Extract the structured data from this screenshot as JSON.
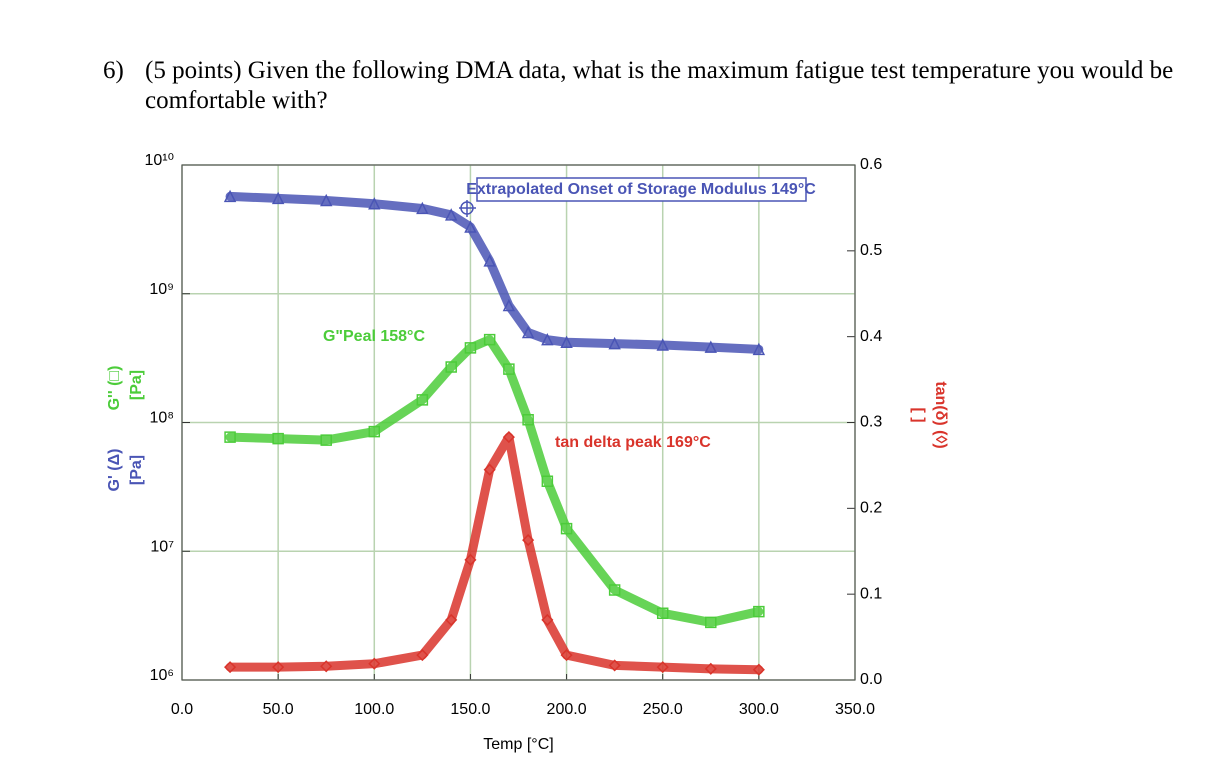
{
  "question": {
    "number": "6)",
    "text": "(5 points) Given the following DMA data, what is the maximum fatigue test temperature you would be comfortable with?"
  },
  "chart_data": {
    "type": "line",
    "xlabel": "Temp [°C]",
    "ylabel_parts": [
      {
        "text": "G' (Δ)",
        "color": "#4a55b5"
      },
      {
        "text": "[Pa]",
        "color": "#4a55b5"
      },
      {
        "text": "G'' (□)",
        "color": "#4ccc3a"
      },
      {
        "text": "[Pa]",
        "color": "#4ccc3a"
      }
    ],
    "y2label_parts": [
      {
        "text": "tan(δ) (◊)",
        "color": "#d9342b"
      },
      {
        "text": "[ ]",
        "color": "#d9342b"
      }
    ],
    "ylog": true,
    "grid": true,
    "xlim": [
      0,
      350
    ],
    "xticks": [
      {
        "value": 0,
        "label": "0.0"
      },
      {
        "value": 50,
        "label": "50.0"
      },
      {
        "value": 100,
        "label": "100.0"
      },
      {
        "value": 150,
        "label": "150.0"
      },
      {
        "value": 200,
        "label": "200.0"
      },
      {
        "value": 250,
        "label": "250.0"
      },
      {
        "value": 300,
        "label": "300.0"
      },
      {
        "value": 350,
        "label": "350.0"
      }
    ],
    "ylim": [
      1000000,
      10000000000
    ],
    "yticks": [
      {
        "value": 1000000,
        "label": "10⁶"
      },
      {
        "value": 10000000,
        "label": "10⁷"
      },
      {
        "value": 100000000,
        "label": "10⁸"
      },
      {
        "value": 1000000000,
        "label": "10⁹"
      },
      {
        "value": 10000000000,
        "label": "10¹⁰"
      }
    ],
    "y2lim": [
      0,
      0.6
    ],
    "y2ticks": [
      {
        "value": 0,
        "label": "0.0"
      },
      0.1,
      0.2,
      0.3,
      0.4,
      0.5,
      0.6
    ],
    "x": [
      25,
      50,
      75,
      100,
      125,
      140,
      150,
      160,
      170,
      180,
      190,
      200,
      225,
      250,
      275,
      300
    ],
    "series": [
      {
        "name": "G'",
        "color": "#4a55b5",
        "marker": "triangle",
        "values": [
          5700000000,
          5500000000,
          5300000000,
          5000000000,
          4600000000,
          4100000000,
          3300000000,
          1800000000,
          810000000,
          500000000,
          440000000,
          420000000,
          410000000,
          400000000,
          385000000,
          370000000
        ]
      },
      {
        "name": "G''",
        "color": "#4ccc3a",
        "marker": "square",
        "values": [
          77000000,
          75000000,
          73000000,
          85000000,
          150000000,
          270000000,
          380000000,
          440000000,
          260000000,
          105000000,
          35000000,
          15000000,
          5000000,
          3300000,
          2800000,
          3400000
        ]
      },
      {
        "name": "tan delta",
        "color": "#d9342b",
        "marker": "diamond",
        "axis": "y2",
        "values": [
          0.015,
          0.015,
          0.016,
          0.019,
          0.029,
          0.07,
          0.14,
          0.245,
          0.283,
          0.163,
          0.07,
          0.029,
          0.017,
          0.015,
          0.013,
          0.012
        ]
      }
    ],
    "annotations": [
      {
        "text": "Extrapolated Onset of Storage Modulus 149°C",
        "color": "#4a55b5"
      },
      {
        "text": "G\"Peal 158°C",
        "color": "#4ccc3a"
      },
      {
        "text": "tan delta peak 169°C",
        "color": "#d9342b"
      }
    ]
  }
}
